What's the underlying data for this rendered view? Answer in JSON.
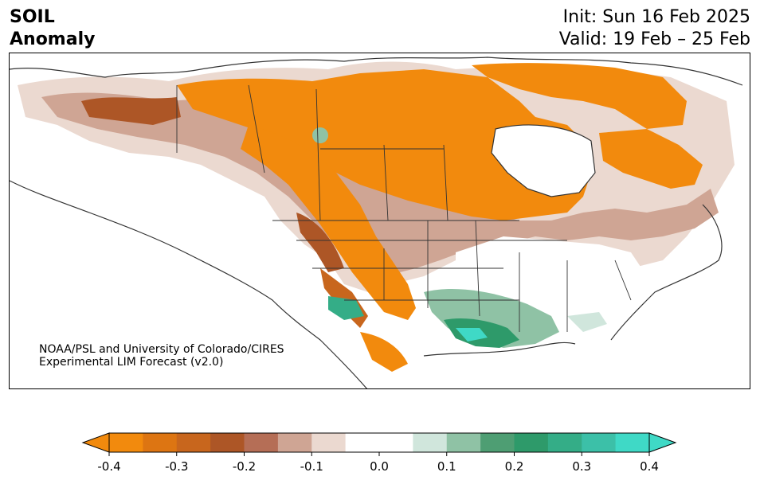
{
  "header": {
    "title_line1": "SOIL",
    "title_line2": "Anomaly",
    "init_text": "Init: Sun 16 Feb 2025",
    "valid_text": "Valid: 19 Feb – 25 Feb"
  },
  "credit": {
    "line1": "NOAA/PSL and University of Colorado/CIRES",
    "line2": "Experimental LIM Forecast (v2.0)"
  },
  "colorbar": {
    "ticks": [
      "-0.4",
      "-0.3",
      "-0.2",
      "-0.1",
      "0.0",
      "0.1",
      "0.2",
      "0.3",
      "0.4"
    ],
    "min": -0.4,
    "max": 0.4,
    "colors": [
      "#f28a0d",
      "#dd7512",
      "#c8661d",
      "#ad5626",
      "#b56e56",
      "#cfa594",
      "#ebd9d0",
      "#ffffff",
      "#ffffff",
      "#d0e6dc",
      "#8fc2a5",
      "#4e9e73",
      "#2e9a6a",
      "#34ad87",
      "#3cc0a8",
      "#3fd9c6"
    ]
  }
}
